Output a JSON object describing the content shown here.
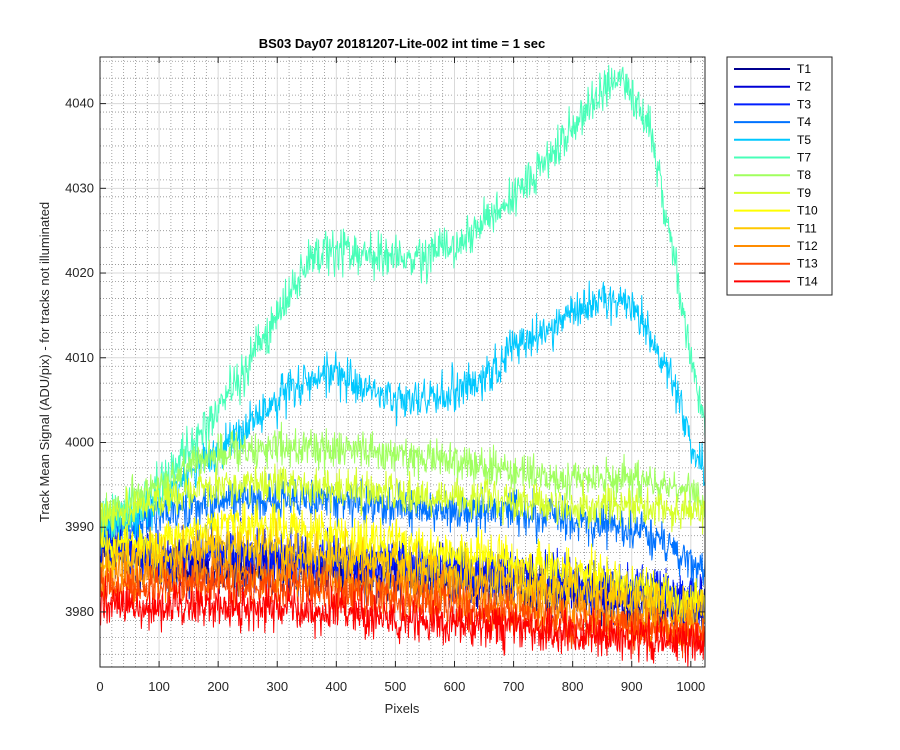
{
  "chart_data": {
    "type": "line",
    "title": "BS03 Day07 20181207-Lite-002 int time = 1 sec",
    "xlabel": "Pixels",
    "ylabel": "Track Mean Signal (ADU/pix) - for tracks not illuminated",
    "xlim": [
      0,
      1024
    ],
    "ylim": [
      3973.5,
      4045.5
    ],
    "xticks": [
      0,
      100,
      200,
      300,
      400,
      500,
      600,
      700,
      800,
      900,
      1000
    ],
    "xtick_labels": [
      "0",
      "100",
      "200",
      "300",
      "400",
      "500",
      "600",
      "700",
      "800",
      "900",
      "1000"
    ],
    "yticks": [
      3980,
      3990,
      4000,
      4010,
      4020,
      4030,
      4040
    ],
    "ytick_labels": [
      "3980",
      "3990",
      "4000",
      "4010",
      "4020",
      "4030",
      "4040"
    ],
    "grid": "major solid, minor dotted",
    "legend_position": "outside-top-right",
    "series": [
      {
        "name": "T1",
        "color": "#00008f",
        "noise": 2.6,
        "x": [
          0,
          100,
          200,
          300,
          400,
          500,
          600,
          700,
          800,
          900,
          1000,
          1024
        ],
        "y": [
          3987,
          3985,
          3985.5,
          3985,
          3984.5,
          3984,
          3983.5,
          3983,
          3982,
          3981,
          3980,
          3980
        ]
      },
      {
        "name": "T2",
        "color": "#0000d5",
        "noise": 2.6,
        "x": [
          0,
          100,
          200,
          300,
          400,
          500,
          600,
          700,
          800,
          900,
          1000,
          1024
        ],
        "y": [
          3988,
          3986,
          3986.5,
          3986,
          3985.5,
          3985,
          3984.5,
          3984,
          3983,
          3982,
          3981,
          3981
        ]
      },
      {
        "name": "T3",
        "color": "#001fff",
        "noise": 2.6,
        "x": [
          0,
          100,
          200,
          300,
          400,
          500,
          600,
          700,
          800,
          900,
          1000,
          1024
        ],
        "y": [
          3988.5,
          3986.5,
          3987,
          3986.5,
          3986,
          3985.5,
          3985,
          3984.5,
          3983.5,
          3982.5,
          3981.5,
          3981
        ]
      },
      {
        "name": "T4",
        "color": "#0072ff",
        "noise": 2.2,
        "x": [
          0,
          100,
          200,
          300,
          400,
          500,
          600,
          700,
          800,
          900,
          950,
          1000,
          1024
        ],
        "y": [
          3990,
          3991,
          3993,
          3993.5,
          3993,
          3992.5,
          3992,
          3991.5,
          3991,
          3990,
          3988.5,
          3986,
          3984
        ]
      },
      {
        "name": "T5",
        "color": "#00c8ff",
        "noise": 2.2,
        "x": [
          0,
          50,
          100,
          150,
          200,
          250,
          300,
          350,
          400,
          450,
          500,
          550,
          600,
          650,
          700,
          750,
          800,
          850,
          890,
          920,
          950,
          980,
          1000,
          1024
        ],
        "y": [
          3990,
          3991,
          3993,
          3996,
          3999,
          4002,
          4005,
          4007.5,
          4008,
          4006,
          4005,
          4005,
          4006,
          4008,
          4011,
          4013,
          4015.5,
          4017,
          4016.5,
          4014,
          4010,
          4005,
          4000,
          3997
        ]
      },
      {
        "name": "T7",
        "color": "#48ffb8",
        "noise": 2.2,
        "x": [
          0,
          50,
          100,
          150,
          200,
          250,
          300,
          330,
          350,
          380,
          400,
          450,
          500,
          550,
          600,
          650,
          700,
          750,
          800,
          850,
          880,
          900,
          930,
          950,
          980,
          1000,
          1024
        ],
        "y": [
          3991,
          3992,
          3995,
          3999,
          4004,
          4009,
          4015,
          4019,
          4021,
          4022.5,
          4023,
          4022,
          4022,
          4022,
          4023,
          4026,
          4029,
          4033,
          4037,
          4042,
          4043,
          4041,
          4037,
          4030,
          4018,
          4010,
          4002
        ]
      },
      {
        "name": "T8",
        "color": "#a0ff5f",
        "noise": 1.9,
        "x": [
          0,
          100,
          200,
          300,
          400,
          500,
          600,
          700,
          800,
          900,
          1000,
          1024
        ],
        "y": [
          3991,
          3995,
          3999,
          3999.5,
          3999,
          3998.5,
          3998,
          3996.5,
          3995.5,
          3996,
          3994,
          3993
        ]
      },
      {
        "name": "T9",
        "color": "#d6ff29",
        "noise": 1.9,
        "x": [
          0,
          100,
          200,
          300,
          400,
          500,
          600,
          700,
          800,
          900,
          1000,
          1024
        ],
        "y": [
          3991,
          3993,
          3995,
          3995,
          3994.5,
          3994,
          3993.5,
          3993,
          3992.5,
          3992.5,
          3992,
          3992
        ]
      },
      {
        "name": "T10",
        "color": "#ffff00",
        "noise": 2.3,
        "x": [
          0,
          100,
          200,
          300,
          400,
          500,
          600,
          700,
          800,
          900,
          1000,
          1024
        ],
        "y": [
          3988,
          3988,
          3990.5,
          3990,
          3989,
          3988,
          3987,
          3986,
          3985,
          3983.5,
          3981,
          3981
        ]
      },
      {
        "name": "T11",
        "color": "#ffc800",
        "noise": 2.3,
        "x": [
          0,
          100,
          200,
          300,
          400,
          500,
          600,
          700,
          800,
          900,
          1000,
          1024
        ],
        "y": [
          3986,
          3986.5,
          3988,
          3987.5,
          3986.5,
          3985.5,
          3984.5,
          3983.5,
          3982.5,
          3981.5,
          3980,
          3980
        ]
      },
      {
        "name": "T12",
        "color": "#ff8c00",
        "noise": 2.3,
        "x": [
          0,
          100,
          200,
          300,
          400,
          500,
          600,
          700,
          800,
          900,
          1000,
          1024
        ],
        "y": [
          3984,
          3984,
          3985,
          3984.5,
          3983.5,
          3983,
          3982,
          3981,
          3980,
          3979,
          3978,
          3978
        ]
      },
      {
        "name": "T13",
        "color": "#ff4800",
        "noise": 2.2,
        "x": [
          0,
          100,
          200,
          300,
          400,
          500,
          600,
          700,
          800,
          900,
          1000,
          1024
        ],
        "y": [
          3983,
          3983,
          3983.5,
          3983,
          3982.5,
          3981.5,
          3980.5,
          3979.5,
          3978.5,
          3978,
          3977.5,
          3977.5
        ]
      },
      {
        "name": "T14",
        "color": "#ff0000",
        "noise": 2.2,
        "x": [
          0,
          100,
          200,
          300,
          400,
          500,
          600,
          700,
          800,
          900,
          1000,
          1024
        ],
        "y": [
          3981,
          3980.5,
          3981,
          3980.5,
          3980,
          3979,
          3978.5,
          3978,
          3977.5,
          3977,
          3976.5,
          3976.5
        ]
      }
    ]
  }
}
